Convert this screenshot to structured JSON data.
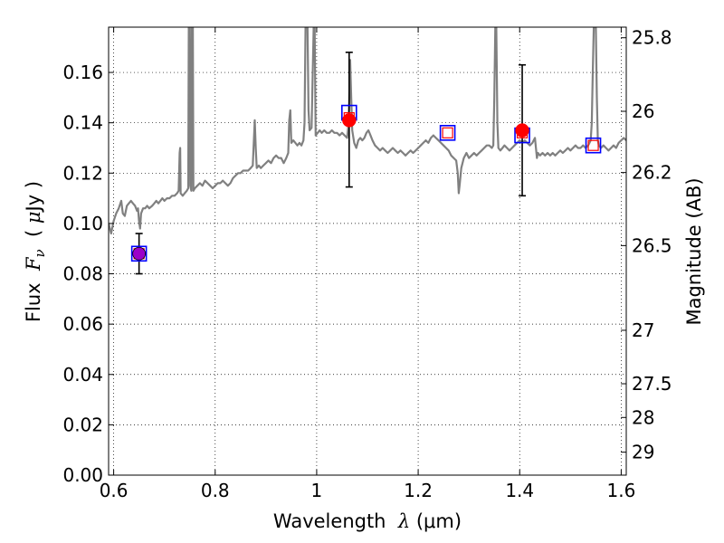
{
  "chart_data": {
    "type": "scatter",
    "title": "",
    "xlabel": "Wavelength  λ (μm)",
    "ylabel": "Flux  F_ν  ( μJy )",
    "ylabel_parts": {
      "prefix": "Flux  ",
      "symbol": "F",
      "subscript": "ν",
      "unit_open": "  ( ",
      "unit_mu": "μ",
      "unit": "Jy )"
    },
    "xlabel_parts": {
      "prefix": "Wavelength  ",
      "symbol": "λ",
      "unit": " (μm)"
    },
    "y2label": "Magnitude (AB)",
    "xlim": [
      0.59,
      1.61
    ],
    "ylim": [
      0.0,
      0.178
    ],
    "grid": true,
    "grid_style": "dotted",
    "x_ticks": [
      0.6,
      0.8,
      1.0,
      1.2,
      1.4,
      1.6
    ],
    "x_tick_labels": [
      "0.6",
      "0.8",
      "1",
      "1.2",
      "1.4",
      "1.6"
    ],
    "y_ticks": [
      0.0,
      0.02,
      0.04,
      0.06,
      0.08,
      0.1,
      0.12,
      0.14,
      0.16
    ],
    "y_tick_labels": [
      "0.00",
      "0.02",
      "0.04",
      "0.06",
      "0.08",
      "0.10",
      "0.12",
      "0.14",
      "0.16"
    ],
    "mag_ticks": [
      25.8,
      26,
      26.2,
      26.5,
      27,
      27.5,
      28,
      29
    ],
    "mag_tick_labels": [
      "25.8",
      "26",
      "26.2",
      "26.5",
      "27",
      "27.5",
      "28",
      "29"
    ],
    "colors": {
      "spectrum": "#808080",
      "observed": "#ff0000",
      "model_box": "#0000ff",
      "model_inner": "#ff0000",
      "purple_point": "#9b00c8",
      "errorbar": "#000000"
    },
    "series": [
      {
        "kind": "spectrum",
        "points": [
          [
            0.59,
            0.1
          ],
          [
            0.595,
            0.096
          ],
          [
            0.6,
            0.101
          ],
          [
            0.605,
            0.104
          ],
          [
            0.61,
            0.106
          ],
          [
            0.615,
            0.109
          ],
          [
            0.618,
            0.104
          ],
          [
            0.622,
            0.103
          ],
          [
            0.626,
            0.107
          ],
          [
            0.63,
            0.108
          ],
          [
            0.634,
            0.109
          ],
          [
            0.638,
            0.108
          ],
          [
            0.642,
            0.107
          ],
          [
            0.646,
            0.105
          ],
          [
            0.648,
            0.106
          ],
          [
            0.65,
            0.101
          ],
          [
            0.652,
            0.098
          ],
          [
            0.654,
            0.104
          ],
          [
            0.658,
            0.106
          ],
          [
            0.662,
            0.106
          ],
          [
            0.666,
            0.107
          ],
          [
            0.67,
            0.106
          ],
          [
            0.676,
            0.107
          ],
          [
            0.68,
            0.108
          ],
          [
            0.684,
            0.109
          ],
          [
            0.688,
            0.108
          ],
          [
            0.692,
            0.109
          ],
          [
            0.696,
            0.11
          ],
          [
            0.7,
            0.109
          ],
          [
            0.705,
            0.11
          ],
          [
            0.71,
            0.11
          ],
          [
            0.715,
            0.111
          ],
          [
            0.72,
            0.111
          ],
          [
            0.725,
            0.112
          ],
          [
            0.728,
            0.113
          ],
          [
            0.73,
            0.128
          ],
          [
            0.731,
            0.13
          ],
          [
            0.732,
            0.112
          ],
          [
            0.736,
            0.111
          ],
          [
            0.74,
            0.112
          ],
          [
            0.744,
            0.113
          ],
          [
            0.747,
            0.114
          ],
          [
            0.748,
            0.178
          ],
          [
            0.75,
            0.178
          ],
          [
            0.751,
            0.115
          ],
          [
            0.753,
            0.113
          ],
          [
            0.754,
            0.178
          ],
          [
            0.756,
            0.178
          ],
          [
            0.757,
            0.113
          ],
          [
            0.76,
            0.114
          ],
          [
            0.765,
            0.115
          ],
          [
            0.77,
            0.116
          ],
          [
            0.775,
            0.115
          ],
          [
            0.78,
            0.117
          ],
          [
            0.785,
            0.116
          ],
          [
            0.79,
            0.115
          ],
          [
            0.795,
            0.114
          ],
          [
            0.8,
            0.115
          ],
          [
            0.805,
            0.116
          ],
          [
            0.81,
            0.116
          ],
          [
            0.815,
            0.117
          ],
          [
            0.82,
            0.116
          ],
          [
            0.825,
            0.115
          ],
          [
            0.83,
            0.116
          ],
          [
            0.835,
            0.118
          ],
          [
            0.84,
            0.119
          ],
          [
            0.845,
            0.12
          ],
          [
            0.85,
            0.12
          ],
          [
            0.855,
            0.121
          ],
          [
            0.86,
            0.121
          ],
          [
            0.865,
            0.121
          ],
          [
            0.87,
            0.122
          ],
          [
            0.874,
            0.123
          ],
          [
            0.876,
            0.132
          ],
          [
            0.878,
            0.141
          ],
          [
            0.88,
            0.13
          ],
          [
            0.882,
            0.122
          ],
          [
            0.886,
            0.123
          ],
          [
            0.89,
            0.122
          ],
          [
            0.895,
            0.123
          ],
          [
            0.9,
            0.124
          ],
          [
            0.905,
            0.125
          ],
          [
            0.91,
            0.124
          ],
          [
            0.915,
            0.126
          ],
          [
            0.92,
            0.127
          ],
          [
            0.925,
            0.126
          ],
          [
            0.93,
            0.126
          ],
          [
            0.935,
            0.124
          ],
          [
            0.94,
            0.126
          ],
          [
            0.944,
            0.128
          ],
          [
            0.946,
            0.141
          ],
          [
            0.948,
            0.145
          ],
          [
            0.95,
            0.132
          ],
          [
            0.954,
            0.133
          ],
          [
            0.958,
            0.132
          ],
          [
            0.962,
            0.131
          ],
          [
            0.966,
            0.132
          ],
          [
            0.97,
            0.131
          ],
          [
            0.974,
            0.133
          ],
          [
            0.976,
            0.14
          ],
          [
            0.978,
            0.178
          ],
          [
            0.982,
            0.178
          ],
          [
            0.984,
            0.145
          ],
          [
            0.986,
            0.137
          ],
          [
            0.99,
            0.138
          ],
          [
            0.994,
            0.178
          ],
          [
            0.996,
            0.178
          ],
          [
            0.998,
            0.135
          ],
          [
            1.002,
            0.136
          ],
          [
            1.006,
            0.137
          ],
          [
            1.01,
            0.136
          ],
          [
            1.015,
            0.137
          ],
          [
            1.02,
            0.136
          ],
          [
            1.025,
            0.136
          ],
          [
            1.03,
            0.137
          ],
          [
            1.035,
            0.136
          ],
          [
            1.04,
            0.136
          ],
          [
            1.045,
            0.135
          ],
          [
            1.05,
            0.136
          ],
          [
            1.055,
            0.135
          ],
          [
            1.06,
            0.134
          ],
          [
            1.062,
            0.138
          ],
          [
            1.064,
            0.148
          ],
          [
            1.066,
            0.165
          ],
          [
            1.068,
            0.15
          ],
          [
            1.07,
            0.137
          ],
          [
            1.074,
            0.132
          ],
          [
            1.078,
            0.13
          ],
          [
            1.082,
            0.133
          ],
          [
            1.086,
            0.134
          ],
          [
            1.09,
            0.133
          ],
          [
            1.094,
            0.134
          ],
          [
            1.098,
            0.136
          ],
          [
            1.102,
            0.137
          ],
          [
            1.106,
            0.135
          ],
          [
            1.11,
            0.133
          ],
          [
            1.115,
            0.131
          ],
          [
            1.12,
            0.13
          ],
          [
            1.125,
            0.129
          ],
          [
            1.13,
            0.13
          ],
          [
            1.135,
            0.129
          ],
          [
            1.14,
            0.128
          ],
          [
            1.145,
            0.129
          ],
          [
            1.15,
            0.13
          ],
          [
            1.155,
            0.129
          ],
          [
            1.16,
            0.128
          ],
          [
            1.165,
            0.129
          ],
          [
            1.17,
            0.128
          ],
          [
            1.175,
            0.127
          ],
          [
            1.18,
            0.128
          ],
          [
            1.185,
            0.129
          ],
          [
            1.19,
            0.128
          ],
          [
            1.195,
            0.129
          ],
          [
            1.2,
            0.13
          ],
          [
            1.205,
            0.131
          ],
          [
            1.21,
            0.132
          ],
          [
            1.215,
            0.133
          ],
          [
            1.22,
            0.132
          ],
          [
            1.225,
            0.134
          ],
          [
            1.23,
            0.135
          ],
          [
            1.235,
            0.134
          ],
          [
            1.24,
            0.133
          ],
          [
            1.245,
            0.132
          ],
          [
            1.25,
            0.131
          ],
          [
            1.255,
            0.13
          ],
          [
            1.26,
            0.129
          ],
          [
            1.265,
            0.127
          ],
          [
            1.27,
            0.126
          ],
          [
            1.275,
            0.125
          ],
          [
            1.278,
            0.12
          ],
          [
            1.28,
            0.112
          ],
          [
            1.282,
            0.116
          ],
          [
            1.285,
            0.122
          ],
          [
            1.29,
            0.126
          ],
          [
            1.295,
            0.128
          ],
          [
            1.3,
            0.126
          ],
          [
            1.305,
            0.127
          ],
          [
            1.31,
            0.128
          ],
          [
            1.315,
            0.127
          ],
          [
            1.32,
            0.128
          ],
          [
            1.325,
            0.129
          ],
          [
            1.33,
            0.13
          ],
          [
            1.335,
            0.131
          ],
          [
            1.34,
            0.131
          ],
          [
            1.345,
            0.13
          ],
          [
            1.348,
            0.131
          ],
          [
            1.35,
            0.15
          ],
          [
            1.352,
            0.178
          ],
          [
            1.354,
            0.178
          ],
          [
            1.356,
            0.14
          ],
          [
            1.358,
            0.13
          ],
          [
            1.362,
            0.129
          ],
          [
            1.366,
            0.13
          ],
          [
            1.37,
            0.131
          ],
          [
            1.375,
            0.13
          ],
          [
            1.38,
            0.129
          ],
          [
            1.385,
            0.13
          ],
          [
            1.39,
            0.131
          ],
          [
            1.395,
            0.132
          ],
          [
            1.4,
            0.133
          ],
          [
            1.405,
            0.132
          ],
          [
            1.41,
            0.133
          ],
          [
            1.415,
            0.132
          ],
          [
            1.42,
            0.131
          ],
          [
            1.425,
            0.132
          ],
          [
            1.43,
            0.134
          ],
          [
            1.432,
            0.13
          ],
          [
            1.434,
            0.126
          ],
          [
            1.436,
            0.128
          ],
          [
            1.44,
            0.127
          ],
          [
            1.445,
            0.128
          ],
          [
            1.45,
            0.127
          ],
          [
            1.455,
            0.128
          ],
          [
            1.46,
            0.127
          ],
          [
            1.465,
            0.128
          ],
          [
            1.47,
            0.127
          ],
          [
            1.475,
            0.128
          ],
          [
            1.48,
            0.129
          ],
          [
            1.485,
            0.128
          ],
          [
            1.49,
            0.129
          ],
          [
            1.495,
            0.13
          ],
          [
            1.5,
            0.129
          ],
          [
            1.505,
            0.13
          ],
          [
            1.51,
            0.131
          ],
          [
            1.515,
            0.13
          ],
          [
            1.52,
            0.13
          ],
          [
            1.525,
            0.131
          ],
          [
            1.53,
            0.13
          ],
          [
            1.535,
            0.131
          ],
          [
            1.54,
            0.133
          ],
          [
            1.542,
            0.14
          ],
          [
            1.544,
            0.16
          ],
          [
            1.546,
            0.178
          ],
          [
            1.55,
            0.178
          ],
          [
            1.552,
            0.15
          ],
          [
            1.554,
            0.133
          ],
          [
            1.556,
            0.131
          ],
          [
            1.56,
            0.13
          ],
          [
            1.565,
            0.131
          ],
          [
            1.57,
            0.13
          ],
          [
            1.575,
            0.129
          ],
          [
            1.58,
            0.13
          ],
          [
            1.585,
            0.131
          ],
          [
            1.59,
            0.13
          ],
          [
            1.595,
            0.132
          ],
          [
            1.6,
            0.133
          ],
          [
            1.605,
            0.134
          ],
          [
            1.61,
            0.133
          ]
        ]
      },
      {
        "kind": "model_squares",
        "points": [
          [
            0.65,
            0.088
          ],
          [
            1.064,
            0.144
          ],
          [
            1.258,
            0.136
          ],
          [
            1.405,
            0.135
          ],
          [
            1.545,
            0.131
          ]
        ]
      },
      {
        "kind": "model_inner_squares",
        "points": [
          [
            0.65,
            0.088
          ],
          [
            1.064,
            0.142
          ],
          [
            1.258,
            0.136
          ],
          [
            1.405,
            0.136
          ],
          [
            1.545,
            0.131
          ]
        ]
      },
      {
        "kind": "observed",
        "points": [
          {
            "x": 1.064,
            "y": 0.141,
            "yerr_low": 0.1145,
            "yerr_high": 0.168
          },
          {
            "x": 1.405,
            "y": 0.137,
            "yerr_low": 0.111,
            "yerr_high": 0.163
          }
        ]
      },
      {
        "kind": "purple_point",
        "points": [
          {
            "x": 0.65,
            "y": 0.088,
            "yerr_low": 0.08,
            "yerr_high": 0.096
          }
        ]
      }
    ]
  }
}
